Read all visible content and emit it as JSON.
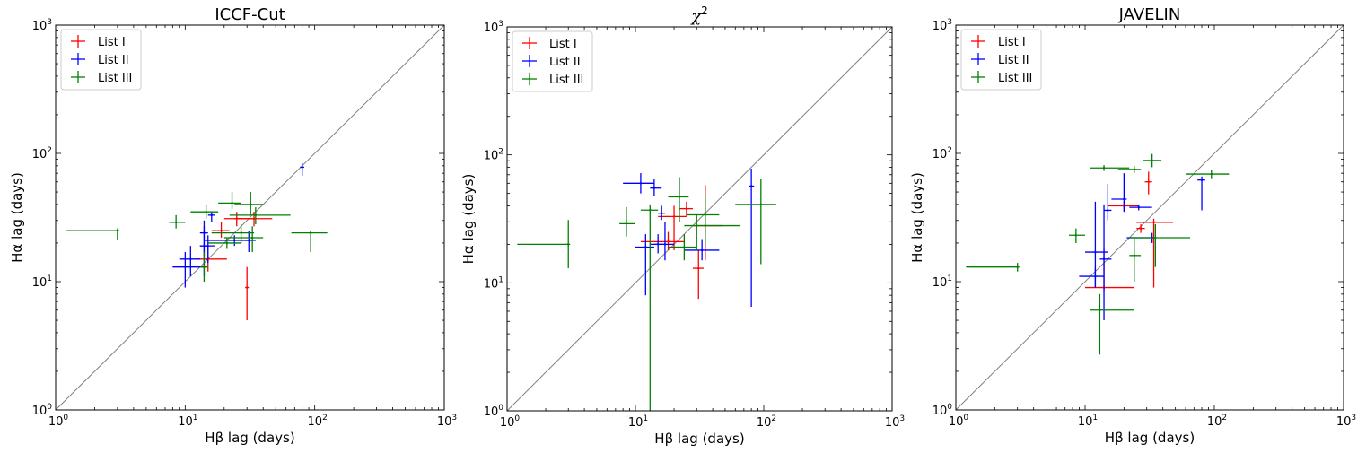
{
  "figure": {
    "series_colors": {
      "List I": "#ff0000",
      "List II": "#0000ff",
      "List III": "#008000"
    },
    "diagonal_color": "#808080"
  },
  "chart_data": [
    {
      "type": "scatter",
      "title": "ICCF-Cut",
      "title_is_math": false,
      "xlabel": "Hβ lag (days)",
      "ylabel": "Hα lag (days)",
      "xscale": "log",
      "yscale": "log",
      "xlim": [
        1,
        1000
      ],
      "ylim": [
        1,
        1000
      ],
      "xticks": [
        {
          "value": 1,
          "base": "10",
          "exp": "0"
        },
        {
          "value": 10,
          "base": "10",
          "exp": "1"
        },
        {
          "value": 100,
          "base": "10",
          "exp": "2"
        },
        {
          "value": 1000,
          "base": "10",
          "exp": "3"
        }
      ],
      "yticks": [
        {
          "value": 1,
          "base": "10",
          "exp": "0"
        },
        {
          "value": 10,
          "base": "10",
          "exp": "1"
        },
        {
          "value": 100,
          "base": "10",
          "exp": "2"
        },
        {
          "value": 1000,
          "base": "10",
          "exp": "3"
        }
      ],
      "legend": {
        "location": "upper-left",
        "entries": [
          "List I",
          "List II",
          "List III"
        ]
      },
      "reference_line": "y = x",
      "series": [
        {
          "name": "List I",
          "points": [
            {
              "x": 15,
              "y": 15,
              "xlo": 12,
              "xhi": 21,
              "ylo": 12,
              "yhi": 19
            },
            {
              "x": 30,
              "y": 9,
              "xlo": 29,
              "xhi": 31,
              "ylo": 5,
              "yhi": 13
            },
            {
              "x": 25,
              "y": 31,
              "xlo": 20,
              "xhi": 35,
              "ylo": 27,
              "yhi": 35
            },
            {
              "x": 34,
              "y": 31,
              "xlo": 24,
              "xhi": 47,
              "ylo": 27,
              "yhi": 35
            },
            {
              "x": 19,
              "y": 25,
              "xlo": 16,
              "xhi": 22,
              "ylo": 22,
              "yhi": 29
            }
          ]
        },
        {
          "name": "List II",
          "points": [
            {
              "x": 80,
              "y": 78,
              "xlo": 77,
              "xhi": 83,
              "ylo": 67,
              "yhi": 84
            },
            {
              "x": 10,
              "y": 13,
              "xlo": 8,
              "xhi": 14,
              "ylo": 9,
              "yhi": 17
            },
            {
              "x": 11,
              "y": 15,
              "xlo": 9,
              "xhi": 13,
              "ylo": 11,
              "yhi": 19
            },
            {
              "x": 14,
              "y": 24,
              "xlo": 13,
              "xhi": 15,
              "ylo": 16,
              "yhi": 30
            },
            {
              "x": 16,
              "y": 33,
              "xlo": 15,
              "xhi": 17,
              "ylo": 29,
              "yhi": 35
            },
            {
              "x": 15,
              "y": 19,
              "xlo": 13,
              "xhi": 17,
              "ylo": 14,
              "yhi": 23
            },
            {
              "x": 24,
              "y": 21,
              "xlo": 14,
              "xhi": 35,
              "ylo": 19,
              "yhi": 23
            },
            {
              "x": 31,
              "y": 21,
              "xlo": 29,
              "xhi": 33,
              "ylo": 17,
              "yhi": 25
            },
            {
              "x": 14,
              "y": 19,
              "xlo": 13,
              "xhi": 15,
              "ylo": 11,
              "yhi": 27
            }
          ]
        },
        {
          "name": "List III",
          "points": [
            {
              "x": 3,
              "y": 25,
              "xlo": 1.2,
              "xhi": 3.1,
              "ylo": 21,
              "yhi": 26
            },
            {
              "x": 8.5,
              "y": 29,
              "xlo": 7.5,
              "xhi": 10,
              "ylo": 26,
              "yhi": 33
            },
            {
              "x": 14.5,
              "y": 35,
              "xlo": 11,
              "xhi": 18,
              "ylo": 31,
              "yhi": 40
            },
            {
              "x": 14,
              "y": 13,
              "xlo": 13,
              "xhi": 15,
              "ylo": 10,
              "yhi": 17
            },
            {
              "x": 23,
              "y": 41,
              "xlo": 18,
              "xhi": 27,
              "ylo": 37,
              "yhi": 50
            },
            {
              "x": 32,
              "y": 40,
              "xlo": 24,
              "xhi": 40,
              "ylo": 33,
              "yhi": 50
            },
            {
              "x": 35,
              "y": 33,
              "xlo": 22,
              "xhi": 65,
              "ylo": 28,
              "yhi": 38
            },
            {
              "x": 33,
              "y": 22,
              "xlo": 20,
              "xhi": 40,
              "ylo": 17,
              "yhi": 27
            },
            {
              "x": 93,
              "y": 24,
              "xlo": 66,
              "xhi": 125,
              "ylo": 17,
              "yhi": 25
            },
            {
              "x": 27,
              "y": 24,
              "xlo": 16,
              "xhi": 34,
              "ylo": 20,
              "yhi": 28
            },
            {
              "x": 21,
              "y": 20,
              "xlo": 15,
              "xhi": 27,
              "ylo": 18,
              "yhi": 22
            }
          ]
        }
      ]
    },
    {
      "type": "scatter",
      "title": "χ",
      "title_sup": "2",
      "title_is_math": true,
      "xlabel": "Hβ lag (days)",
      "ylabel": "Hα lag (days)",
      "xscale": "log",
      "yscale": "log",
      "xlim": [
        1,
        1000
      ],
      "ylim": [
        1,
        1000
      ],
      "xticks": [
        {
          "value": 1,
          "base": "10",
          "exp": "0"
        },
        {
          "value": 10,
          "base": "10",
          "exp": "1"
        },
        {
          "value": 100,
          "base": "10",
          "exp": "2"
        },
        {
          "value": 1000,
          "base": "10",
          "exp": "3"
        }
      ],
      "yticks": [
        {
          "value": 1,
          "base": "10",
          "exp": "0"
        },
        {
          "value": 10,
          "base": "10",
          "exp": "1"
        },
        {
          "value": 100,
          "base": "10",
          "exp": "2"
        },
        {
          "value": 1000,
          "base": "10",
          "exp": "3"
        }
      ],
      "legend": {
        "location": "upper-left",
        "entries": [
          "List I",
          "List II",
          "List III"
        ]
      },
      "reference_line": "y = x",
      "series": [
        {
          "name": "List I",
          "points": [
            {
              "x": 18,
              "y": 21,
              "xlo": 11,
              "xhi": 24,
              "ylo": 18,
              "yhi": 25
            },
            {
              "x": 25,
              "y": 38,
              "xlo": 22,
              "xhi": 28,
              "ylo": 33,
              "yhi": 43
            },
            {
              "x": 31,
              "y": 13,
              "xlo": 28,
              "xhi": 34,
              "ylo": 7.5,
              "yhi": 18
            },
            {
              "x": 35,
              "y": 28,
              "xlo": 28,
              "xhi": 48,
              "ylo": 15,
              "yhi": 58
            },
            {
              "x": 20,
              "y": 33,
              "xlo": 15,
              "xhi": 25,
              "ylo": 18,
              "yhi": 40
            }
          ]
        },
        {
          "name": "List II",
          "points": [
            {
              "x": 11,
              "y": 60,
              "xlo": 8,
              "xhi": 14,
              "ylo": 50,
              "yhi": 72
            },
            {
              "x": 14,
              "y": 55,
              "xlo": 13,
              "xhi": 16,
              "ylo": 48,
              "yhi": 65
            },
            {
              "x": 12,
              "y": 19,
              "xlo": 10,
              "xhi": 14,
              "ylo": 8,
              "yhi": 24
            },
            {
              "x": 16,
              "y": 35,
              "xlo": 15,
              "xhi": 17,
              "ylo": 31,
              "yhi": 40
            },
            {
              "x": 17,
              "y": 20,
              "xlo": 14,
              "xhi": 20,
              "ylo": 15,
              "yhi": 30
            },
            {
              "x": 33,
              "y": 18,
              "xlo": 24,
              "xhi": 45,
              "ylo": 15,
              "yhi": 22
            },
            {
              "x": 80,
              "y": 57,
              "xlo": 76,
              "xhi": 84,
              "ylo": 6.5,
              "yhi": 78
            },
            {
              "x": 15,
              "y": 20,
              "xlo": 13,
              "xhi": 17,
              "ylo": 17,
              "yhi": 24
            }
          ]
        },
        {
          "name": "List III",
          "points": [
            {
              "x": 3,
              "y": 20,
              "xlo": 1.2,
              "xhi": 3.1,
              "ylo": 13,
              "yhi": 31
            },
            {
              "x": 8.5,
              "y": 29,
              "xlo": 7.5,
              "xhi": 10,
              "ylo": 23,
              "yhi": 39
            },
            {
              "x": 13,
              "y": 37,
              "xlo": 11,
              "xhi": 15,
              "ylo": 1,
              "yhi": 41
            },
            {
              "x": 22,
              "y": 47,
              "xlo": 18,
              "xhi": 26,
              "ylo": 30,
              "yhi": 67
            },
            {
              "x": 30,
              "y": 28,
              "xlo": 24,
              "xhi": 65,
              "ylo": 18,
              "yhi": 34
            },
            {
              "x": 35,
              "y": 34,
              "xlo": 25,
              "xhi": 45,
              "ylo": 20,
              "yhi": 49
            },
            {
              "x": 95,
              "y": 41,
              "xlo": 60,
              "xhi": 125,
              "ylo": 14,
              "yhi": 65
            },
            {
              "x": 24,
              "y": 19,
              "xlo": 18,
              "xhi": 30,
              "ylo": 15,
              "yhi": 24
            }
          ]
        }
      ]
    },
    {
      "type": "scatter",
      "title": "JAVELIN",
      "title_is_math": false,
      "xlabel": "Hβ lag (days)",
      "ylabel": "Hα lag (days)",
      "xscale": "log",
      "yscale": "log",
      "xlim": [
        1,
        1000
      ],
      "ylim": [
        1,
        1000
      ],
      "xticks": [
        {
          "value": 1,
          "base": "10",
          "exp": "0"
        },
        {
          "value": 10,
          "base": "10",
          "exp": "1"
        },
        {
          "value": 100,
          "base": "10",
          "exp": "2"
        },
        {
          "value": 1000,
          "base": "10",
          "exp": "3"
        }
      ],
      "yticks": [
        {
          "value": 1,
          "base": "10",
          "exp": "0"
        },
        {
          "value": 10,
          "base": "10",
          "exp": "1"
        },
        {
          "value": 100,
          "base": "10",
          "exp": "2"
        },
        {
          "value": 1000,
          "base": "10",
          "exp": "3"
        }
      ],
      "legend": {
        "location": "upper-left",
        "entries": [
          "List I",
          "List II",
          "List III"
        ]
      },
      "reference_line": "y = x",
      "series": [
        {
          "name": "List I",
          "points": [
            {
              "x": 31,
              "y": 60,
              "xlo": 29,
              "xhi": 33,
              "ylo": 48,
              "yhi": 72
            },
            {
              "x": 20,
              "y": 39,
              "xlo": 15,
              "xhi": 26,
              "ylo": 36,
              "yhi": 42
            },
            {
              "x": 27,
              "y": 26,
              "xlo": 25,
              "xhi": 29,
              "ylo": 24,
              "yhi": 28
            },
            {
              "x": 34,
              "y": 29,
              "xlo": 25,
              "xhi": 48,
              "ylo": 9,
              "yhi": 31
            },
            {
              "x": 14,
              "y": 9,
              "xlo": 10,
              "xhi": 24,
              "ylo": 8.5,
              "yhi": 18
            }
          ]
        },
        {
          "name": "List II",
          "points": [
            {
              "x": 80,
              "y": 62,
              "xlo": 74,
              "xhi": 85,
              "ylo": 36,
              "yhi": 66
            },
            {
              "x": 12,
              "y": 17,
              "xlo": 10,
              "xhi": 15,
              "ylo": 9,
              "yhi": 42
            },
            {
              "x": 14,
              "y": 15,
              "xlo": 13,
              "xhi": 16,
              "ylo": 5,
              "yhi": 40
            },
            {
              "x": 15,
              "y": 36,
              "xlo": 14,
              "xhi": 16,
              "ylo": 30,
              "yhi": 58
            },
            {
              "x": 20,
              "y": 44,
              "xlo": 16,
              "xhi": 21,
              "ylo": 35,
              "yhi": 70
            },
            {
              "x": 33,
              "y": 22,
              "xlo": 21,
              "xhi": 35,
              "ylo": 20,
              "yhi": 24
            },
            {
              "x": 12,
              "y": 11,
              "xlo": 9,
              "xhi": 14,
              "ylo": 9,
              "yhi": 13
            },
            {
              "x": 26,
              "y": 38,
              "xlo": 22,
              "xhi": 33,
              "ylo": 36,
              "yhi": 40
            }
          ]
        },
        {
          "name": "List III",
          "points": [
            {
              "x": 3,
              "y": 13,
              "xlo": 1.2,
              "xhi": 3.1,
              "ylo": 12,
              "yhi": 14
            },
            {
              "x": 8.5,
              "y": 23,
              "xlo": 7.5,
              "xhi": 10,
              "ylo": 20,
              "yhi": 26
            },
            {
              "x": 14,
              "y": 77,
              "xlo": 11,
              "xhi": 22,
              "ylo": 73,
              "yhi": 81
            },
            {
              "x": 24,
              "y": 75,
              "xlo": 18,
              "xhi": 27,
              "ylo": 70,
              "yhi": 80
            },
            {
              "x": 33,
              "y": 88,
              "xlo": 28,
              "xhi": 39,
              "ylo": 78,
              "yhi": 99
            },
            {
              "x": 95,
              "y": 69,
              "xlo": 60,
              "xhi": 130,
              "ylo": 64,
              "yhi": 74
            },
            {
              "x": 13,
              "y": 6,
              "xlo": 11,
              "xhi": 24,
              "ylo": 2.7,
              "yhi": 8
            },
            {
              "x": 35,
              "y": 22,
              "xlo": 22,
              "xhi": 65,
              "ylo": 13,
              "yhi": 28
            },
            {
              "x": 24,
              "y": 16,
              "xlo": 22,
              "xhi": 27,
              "ylo": 10,
              "yhi": 22
            }
          ]
        }
      ]
    }
  ]
}
